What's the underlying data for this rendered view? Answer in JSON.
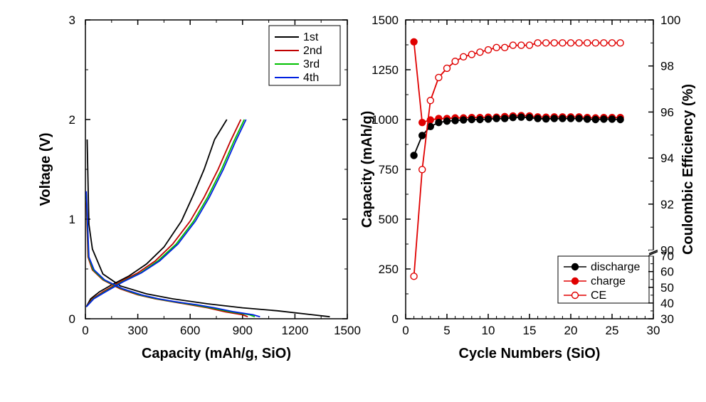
{
  "left_chart": {
    "type": "line",
    "background_color": "#ffffff",
    "xlabel": "Capacity (mAh/g, SiO)",
    "ylabel": "Voltage (V)",
    "xlim": [
      0,
      1500
    ],
    "ylim": [
      0,
      3
    ],
    "xtick_step": 300,
    "ytick_step": 1,
    "xtick_minor_step": 150,
    "ytick_minor_step": 0.5,
    "label_fontsize": 20,
    "tick_fontsize": 17,
    "line_width": 1.8,
    "series": {
      "first": {
        "label": "1st",
        "color": "#000000",
        "discharge": [
          [
            10,
            1.8
          ],
          [
            20,
            0.95
          ],
          [
            40,
            0.7
          ],
          [
            100,
            0.45
          ],
          [
            200,
            0.33
          ],
          [
            350,
            0.25
          ],
          [
            500,
            0.2
          ],
          [
            700,
            0.15
          ],
          [
            900,
            0.11
          ],
          [
            1100,
            0.08
          ],
          [
            1300,
            0.04
          ],
          [
            1400,
            0.02
          ]
        ],
        "charge": [
          [
            5,
            0.12
          ],
          [
            30,
            0.2
          ],
          [
            80,
            0.27
          ],
          [
            150,
            0.34
          ],
          [
            250,
            0.43
          ],
          [
            350,
            0.55
          ],
          [
            450,
            0.72
          ],
          [
            550,
            0.98
          ],
          [
            620,
            1.25
          ],
          [
            680,
            1.5
          ],
          [
            740,
            1.8
          ],
          [
            810,
            2.0
          ]
        ]
      },
      "second": {
        "label": "2nd",
        "color": "#c00000",
        "discharge": [
          [
            5,
            1.2
          ],
          [
            15,
            0.62
          ],
          [
            40,
            0.49
          ],
          [
            100,
            0.39
          ],
          [
            200,
            0.3
          ],
          [
            300,
            0.24
          ],
          [
            400,
            0.2
          ],
          [
            500,
            0.17
          ],
          [
            600,
            0.14
          ],
          [
            700,
            0.11
          ],
          [
            800,
            0.07
          ],
          [
            900,
            0.04
          ],
          [
            930,
            0.02
          ]
        ],
        "charge": [
          [
            5,
            0.12
          ],
          [
            40,
            0.2
          ],
          [
            100,
            0.27
          ],
          [
            200,
            0.37
          ],
          [
            300,
            0.46
          ],
          [
            400,
            0.58
          ],
          [
            500,
            0.75
          ],
          [
            600,
            0.98
          ],
          [
            680,
            1.22
          ],
          [
            760,
            1.5
          ],
          [
            830,
            1.78
          ],
          [
            890,
            2.0
          ]
        ]
      },
      "third": {
        "label": "3rd",
        "color": "#00c000",
        "discharge": [
          [
            5,
            1.25
          ],
          [
            18,
            0.62
          ],
          [
            45,
            0.49
          ],
          [
            105,
            0.39
          ],
          [
            210,
            0.3
          ],
          [
            310,
            0.24
          ],
          [
            410,
            0.2
          ],
          [
            510,
            0.17
          ],
          [
            620,
            0.14
          ],
          [
            720,
            0.11
          ],
          [
            830,
            0.07
          ],
          [
            940,
            0.04
          ],
          [
            970,
            0.02
          ]
        ],
        "charge": [
          [
            5,
            0.12
          ],
          [
            45,
            0.2
          ],
          [
            110,
            0.27
          ],
          [
            210,
            0.37
          ],
          [
            315,
            0.46
          ],
          [
            415,
            0.58
          ],
          [
            520,
            0.75
          ],
          [
            620,
            0.98
          ],
          [
            700,
            1.22
          ],
          [
            780,
            1.5
          ],
          [
            850,
            1.78
          ],
          [
            910,
            2.0
          ]
        ]
      },
      "fourth": {
        "label": "4th",
        "color": "#0020e0",
        "discharge": [
          [
            5,
            1.28
          ],
          [
            20,
            0.62
          ],
          [
            50,
            0.49
          ],
          [
            110,
            0.39
          ],
          [
            215,
            0.3
          ],
          [
            320,
            0.24
          ],
          [
            420,
            0.2
          ],
          [
            520,
            0.17
          ],
          [
            640,
            0.14
          ],
          [
            740,
            0.11
          ],
          [
            850,
            0.07
          ],
          [
            960,
            0.04
          ],
          [
            1000,
            0.02
          ]
        ],
        "charge": [
          [
            5,
            0.12
          ],
          [
            48,
            0.2
          ],
          [
            115,
            0.27
          ],
          [
            215,
            0.37
          ],
          [
            320,
            0.46
          ],
          [
            425,
            0.58
          ],
          [
            530,
            0.75
          ],
          [
            630,
            0.98
          ],
          [
            710,
            1.22
          ],
          [
            790,
            1.5
          ],
          [
            860,
            1.78
          ],
          [
            920,
            2.0
          ]
        ]
      }
    }
  },
  "right_chart": {
    "type": "scatter-line",
    "background_color": "#ffffff",
    "xlabel": "Cycle Numbers (SiO)",
    "ylabel_left": "Capacity (mAh/g)",
    "ylabel_right": "Coulombic Efficiency (%)",
    "xlim": [
      0,
      30
    ],
    "ylim_left": [
      0,
      1500
    ],
    "xtick_step": 5,
    "xtick_minor_step": 1,
    "ytick_left_step": 250,
    "ytick_left_minor_step": 125,
    "right_axis": {
      "lower": [
        30,
        70
      ],
      "upper": [
        90,
        100
      ],
      "lower_ticks": [
        30,
        40,
        50,
        60,
        70
      ],
      "upper_ticks": [
        90,
        92,
        94,
        96,
        98,
        100
      ],
      "break_frac_lower": 0.22
    },
    "label_fontsize": 20,
    "tick_fontsize": 17,
    "marker_radius": 4.5,
    "series": {
      "discharge": {
        "label": "discharge",
        "color_line": "#000000",
        "color_fill": "#000000",
        "marker": "circle",
        "axis": "left",
        "data": [
          [
            1,
            820
          ],
          [
            2,
            920
          ],
          [
            3,
            965
          ],
          [
            4,
            985
          ],
          [
            5,
            992
          ],
          [
            6,
            995
          ],
          [
            7,
            998
          ],
          [
            8,
            1000
          ],
          [
            9,
            1000
          ],
          [
            10,
            1002
          ],
          [
            11,
            1005
          ],
          [
            12,
            1005
          ],
          [
            13,
            1010
          ],
          [
            14,
            1012
          ],
          [
            15,
            1010
          ],
          [
            16,
            1005
          ],
          [
            17,
            1003
          ],
          [
            18,
            1005
          ],
          [
            19,
            1005
          ],
          [
            20,
            1005
          ],
          [
            21,
            1005
          ],
          [
            22,
            1002
          ],
          [
            23,
            1000
          ],
          [
            24,
            1002
          ],
          [
            25,
            1002
          ],
          [
            26,
            1000
          ]
        ]
      },
      "charge": {
        "label": "charge",
        "color_line": "#e00000",
        "color_fill": "#e00000",
        "marker": "circle",
        "axis": "left",
        "data": [
          [
            1,
            1390
          ],
          [
            2,
            985
          ],
          [
            3,
            998
          ],
          [
            4,
            1005
          ],
          [
            5,
            1005
          ],
          [
            6,
            1008
          ],
          [
            7,
            1008
          ],
          [
            8,
            1010
          ],
          [
            9,
            1010
          ],
          [
            10,
            1012
          ],
          [
            11,
            1012
          ],
          [
            12,
            1015
          ],
          [
            13,
            1018
          ],
          [
            14,
            1020
          ],
          [
            15,
            1018
          ],
          [
            16,
            1013
          ],
          [
            17,
            1012
          ],
          [
            18,
            1013
          ],
          [
            19,
            1013
          ],
          [
            20,
            1013
          ],
          [
            21,
            1013
          ],
          [
            22,
            1010
          ],
          [
            23,
            1008
          ],
          [
            24,
            1010
          ],
          [
            25,
            1010
          ],
          [
            26,
            1010
          ]
        ]
      },
      "ce": {
        "label": "CE",
        "color_line": "#e00000",
        "color_fill": "#ffffff",
        "marker": "circle-open",
        "axis": "right",
        "data": [
          [
            1,
            57
          ],
          [
            2,
            93.5
          ],
          [
            3,
            96.5
          ],
          [
            4,
            97.5
          ],
          [
            5,
            97.9
          ],
          [
            6,
            98.2
          ],
          [
            7,
            98.4
          ],
          [
            8,
            98.5
          ],
          [
            9,
            98.6
          ],
          [
            10,
            98.7
          ],
          [
            11,
            98.8
          ],
          [
            12,
            98.8
          ],
          [
            13,
            98.9
          ],
          [
            14,
            98.9
          ],
          [
            15,
            98.9
          ],
          [
            16,
            99.0
          ],
          [
            17,
            99.0
          ],
          [
            18,
            99.0
          ],
          [
            19,
            99.0
          ],
          [
            20,
            99.0
          ],
          [
            21,
            99.0
          ],
          [
            22,
            99.0
          ],
          [
            23,
            99.0
          ],
          [
            24,
            99.0
          ],
          [
            25,
            99.0
          ],
          [
            26,
            99.0
          ]
        ]
      }
    }
  }
}
